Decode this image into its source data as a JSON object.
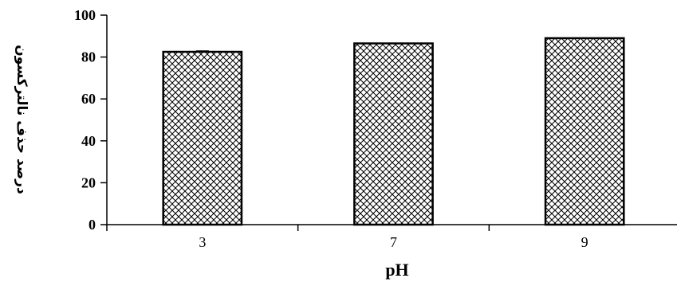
{
  "chart_data": {
    "type": "bar",
    "categories": [
      "3",
      "7",
      "9"
    ],
    "values": [
      82.5,
      86.5,
      89
    ],
    "errors": [
      0.4,
      0,
      0
    ],
    "title": "",
    "xlabel": "pH",
    "ylabel": "درصد حذف نالترکسون",
    "ylim": [
      0,
      100
    ],
    "yticks": [
      "0",
      "20",
      "40",
      "60",
      "80",
      "100"
    ],
    "grid": false,
    "legend": "none",
    "bar_pattern": "crosshatch",
    "colors": {
      "bar_fill": "#ffffff",
      "hatch": "#000000",
      "axis": "#000000"
    }
  }
}
